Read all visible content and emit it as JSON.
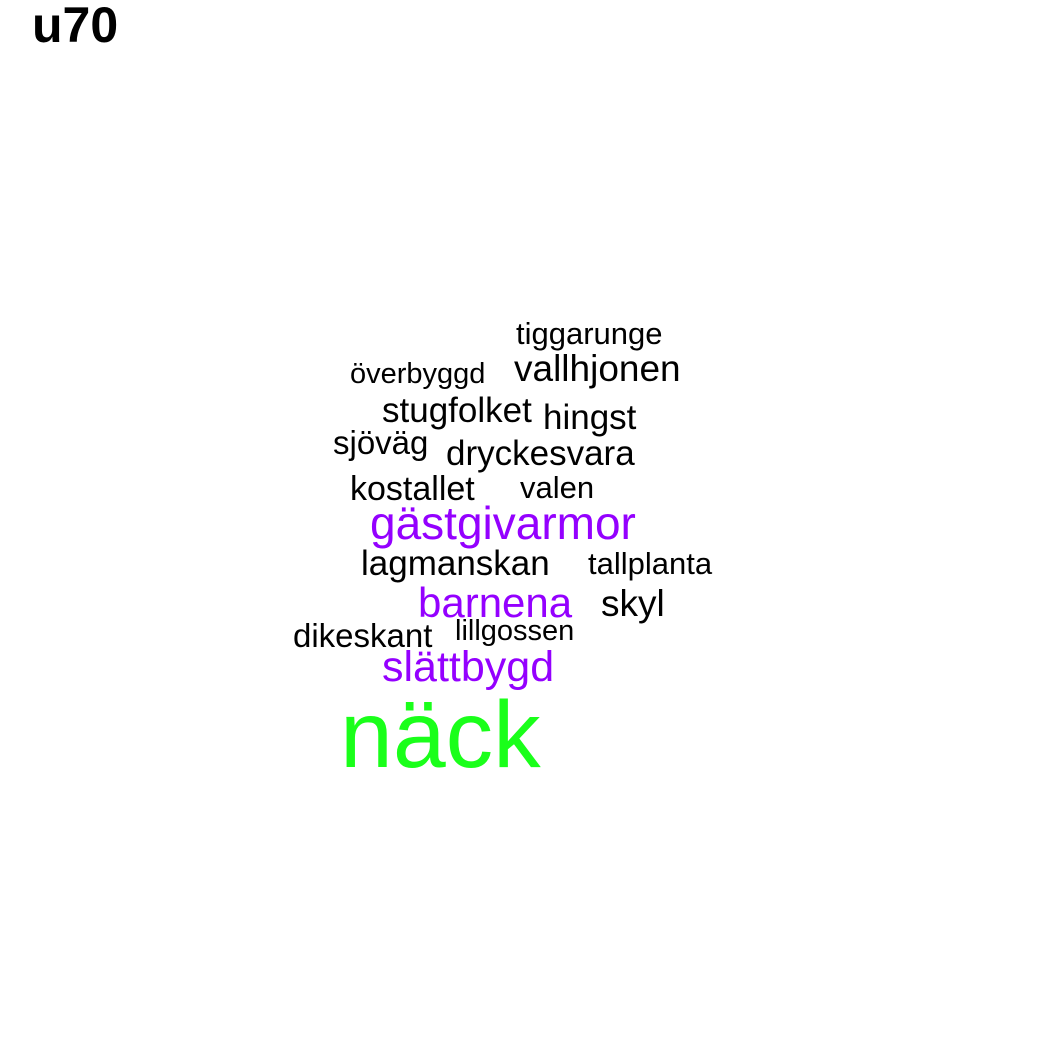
{
  "title": "u70",
  "colors": {
    "black": "#000000",
    "purple": "#9400ff",
    "green": "#1aff1a"
  },
  "words": [
    {
      "text": "tiggarunge"
    },
    {
      "text": "överbyggd"
    },
    {
      "text": "vallhjonen"
    },
    {
      "text": "stugfolket"
    },
    {
      "text": "hingst"
    },
    {
      "text": "sjöväg"
    },
    {
      "text": "dryckesvara"
    },
    {
      "text": "kostallet"
    },
    {
      "text": "valen"
    },
    {
      "text": "gästgivarmor"
    },
    {
      "text": "lagmanskan"
    },
    {
      "text": "tallplanta"
    },
    {
      "text": "barnena"
    },
    {
      "text": "skyl"
    },
    {
      "text": "dikeskant"
    },
    {
      "text": "lillgossen"
    },
    {
      "text": "slättbygd"
    },
    {
      "text": "näck"
    }
  ]
}
